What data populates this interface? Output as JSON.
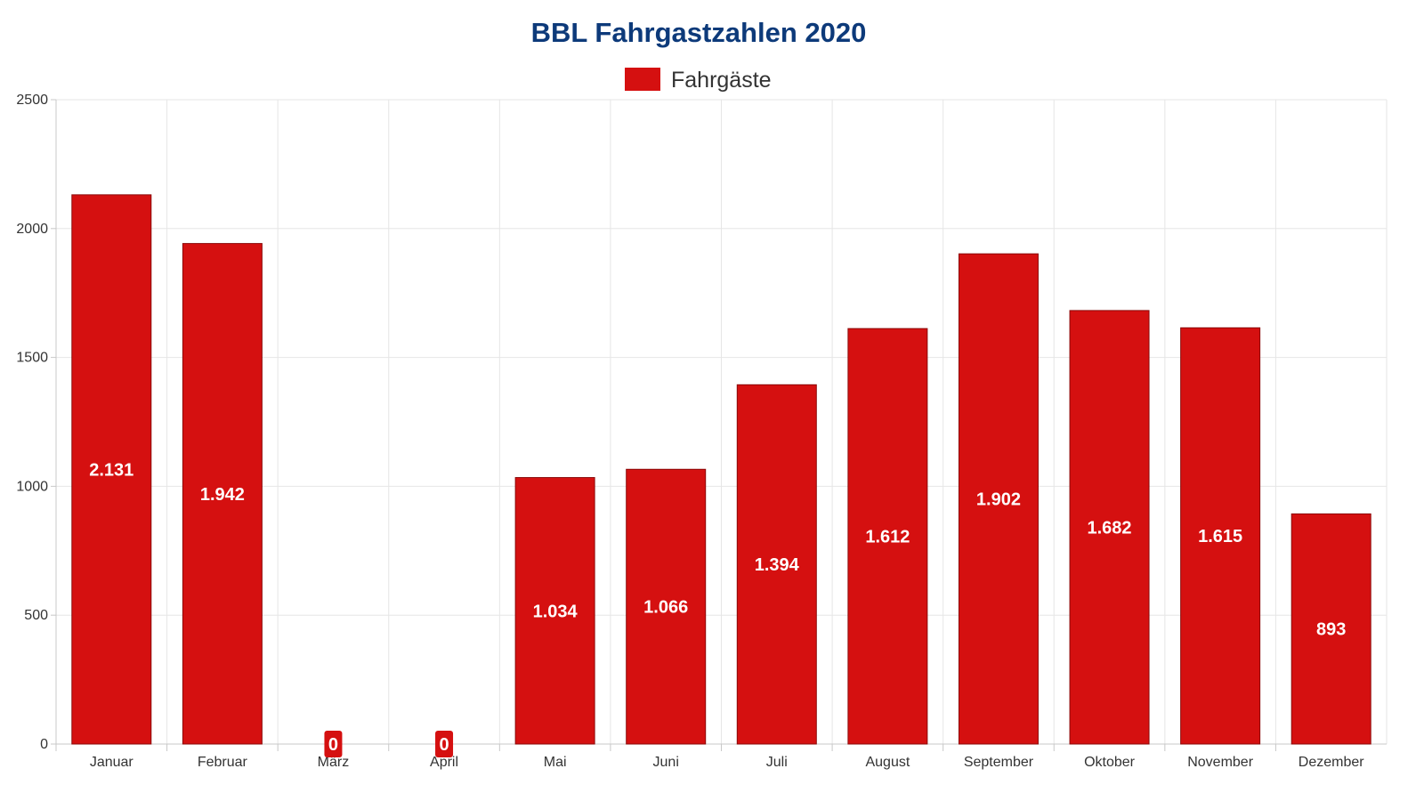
{
  "chart_data": {
    "type": "bar",
    "title": "BBL Fahrgastzahlen 2020",
    "categories": [
      "Januar",
      "Februar",
      "März",
      "April",
      "Mai",
      "Juni",
      "Juli",
      "August",
      "September",
      "Oktober",
      "November",
      "Dezember"
    ],
    "series": [
      {
        "name": "Fahrgäste",
        "values": [
          2131,
          1942,
          0,
          0,
          1034,
          1066,
          1394,
          1612,
          1902,
          1682,
          1615,
          893
        ],
        "data_labels": [
          "2.131",
          "1.942",
          "0",
          "0",
          "1.034",
          "1.066",
          "1.394",
          "1.612",
          "1.902",
          "1.682",
          "1.615",
          "893"
        ]
      }
    ],
    "y_ticks": [
      "0",
      "500",
      "1000",
      "1500",
      "2000",
      "2500"
    ],
    "xlabel": "",
    "ylabel": "",
    "ylim": [
      0,
      2500
    ],
    "grid": true,
    "legend_position": "top-center",
    "colors": {
      "bar": "#d51010",
      "title": "#0d3a7a"
    }
  }
}
